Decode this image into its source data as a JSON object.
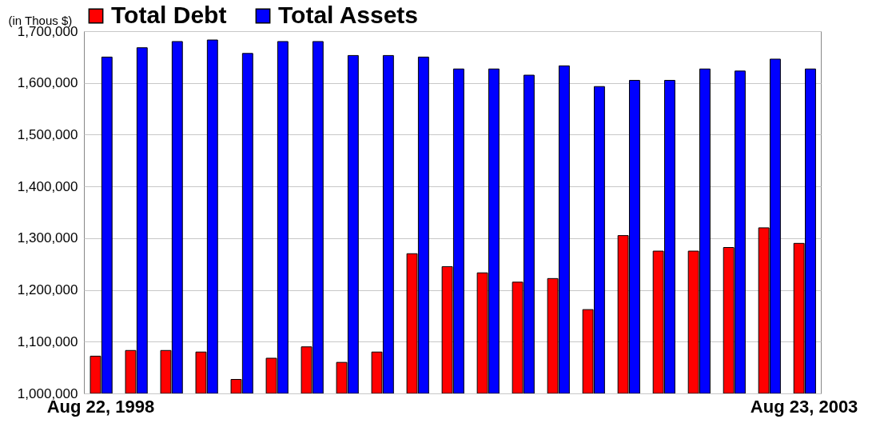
{
  "chart_data": {
    "type": "bar",
    "ylabel": "(in Thous $)",
    "categories": [
      "Aug 22, 1998",
      null,
      null,
      null,
      null,
      null,
      null,
      null,
      null,
      null,
      null,
      null,
      null,
      null,
      null,
      null,
      null,
      null,
      null,
      null,
      "Aug 23, 2003"
    ],
    "series": [
      {
        "name": "Total Debt",
        "color": "#ff0000",
        "values": [
          1072000,
          1083000,
          1083000,
          1080000,
          1027000,
          1068000,
          1090000,
          1060000,
          1080000,
          1270000,
          1245000,
          1233000,
          1215000,
          1222000,
          1162000,
          1305000,
          1275000,
          1275000,
          1282000,
          1320000,
          1290000
        ]
      },
      {
        "name": "Total Assets",
        "color": "#0000ff",
        "values": [
          1650000,
          1668000,
          1680000,
          1683000,
          1657000,
          1680000,
          1680000,
          1653000,
          1653000,
          1650000,
          1627000,
          1627000,
          1615000,
          1633000,
          1593000,
          1605000,
          1605000,
          1627000,
          1623000,
          1646000,
          1627000
        ]
      }
    ],
    "ylim": [
      1000000,
      1700000
    ],
    "yticks": [
      {
        "value": 1000000,
        "label": "1,000,000"
      },
      {
        "value": 1100000,
        "label": "1,100,000"
      },
      {
        "value": 1200000,
        "label": "1,200,000"
      },
      {
        "value": 1300000,
        "label": "1,300,000"
      },
      {
        "value": 1400000,
        "label": "1,400,000"
      },
      {
        "value": 1500000,
        "label": "1,500,000"
      },
      {
        "value": 1600000,
        "label": "1,600,000"
      },
      {
        "value": 1700000,
        "label": "1,700,000"
      }
    ],
    "grid": "y",
    "legend": "top"
  }
}
